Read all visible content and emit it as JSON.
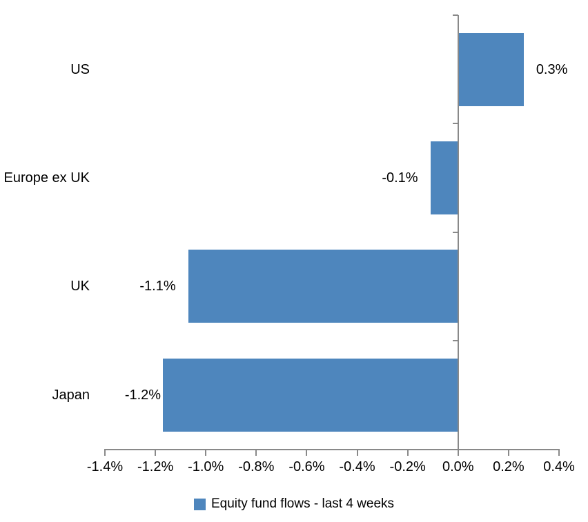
{
  "chart_data": {
    "type": "bar",
    "orientation": "horizontal",
    "title": "",
    "categories": [
      "US",
      "Europe ex UK",
      "UK",
      "Japan"
    ],
    "values": [
      0.3,
      -0.1,
      -1.1,
      -1.2
    ],
    "bar_lengths_pct": [
      0.26,
      -0.11,
      -1.07,
      -1.17
    ],
    "value_labels": [
      "0.3%",
      "-0.1%",
      "-1.1%",
      "-1.2%"
    ],
    "series_name": "Equity fund flows - last 4 weeks",
    "x_tick_values": [
      -1.4,
      -1.2,
      -1.0,
      -0.8,
      -0.6,
      -0.4,
      -0.2,
      0.0,
      0.2,
      0.4
    ],
    "x_tick_labels": [
      "-1.4%",
      "-1.2%",
      "-1.0%",
      "-0.8%",
      "-0.6%",
      "-0.4%",
      "-0.2%",
      "0.0%",
      "0.2%",
      "0.4%"
    ],
    "xlim": [
      -1.4,
      0.4
    ],
    "grid": false,
    "legend_position": "bottom",
    "bar_color": "#4E86BD",
    "axis_color": "#898989",
    "text_color": "#000000"
  },
  "legend": {
    "label": "Equity fund flows - last 4 weeks",
    "marker_color": "#4E86BD"
  }
}
